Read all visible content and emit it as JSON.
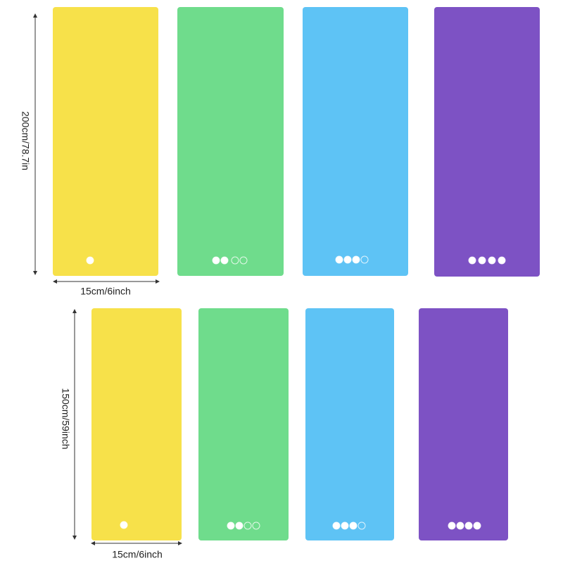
{
  "labels": {
    "top_length": "200cm/78.7in",
    "top_width": "15cm/6inch",
    "bottom_length": "150cm/59inch",
    "bottom_width": "15cm/6inch"
  }
}
